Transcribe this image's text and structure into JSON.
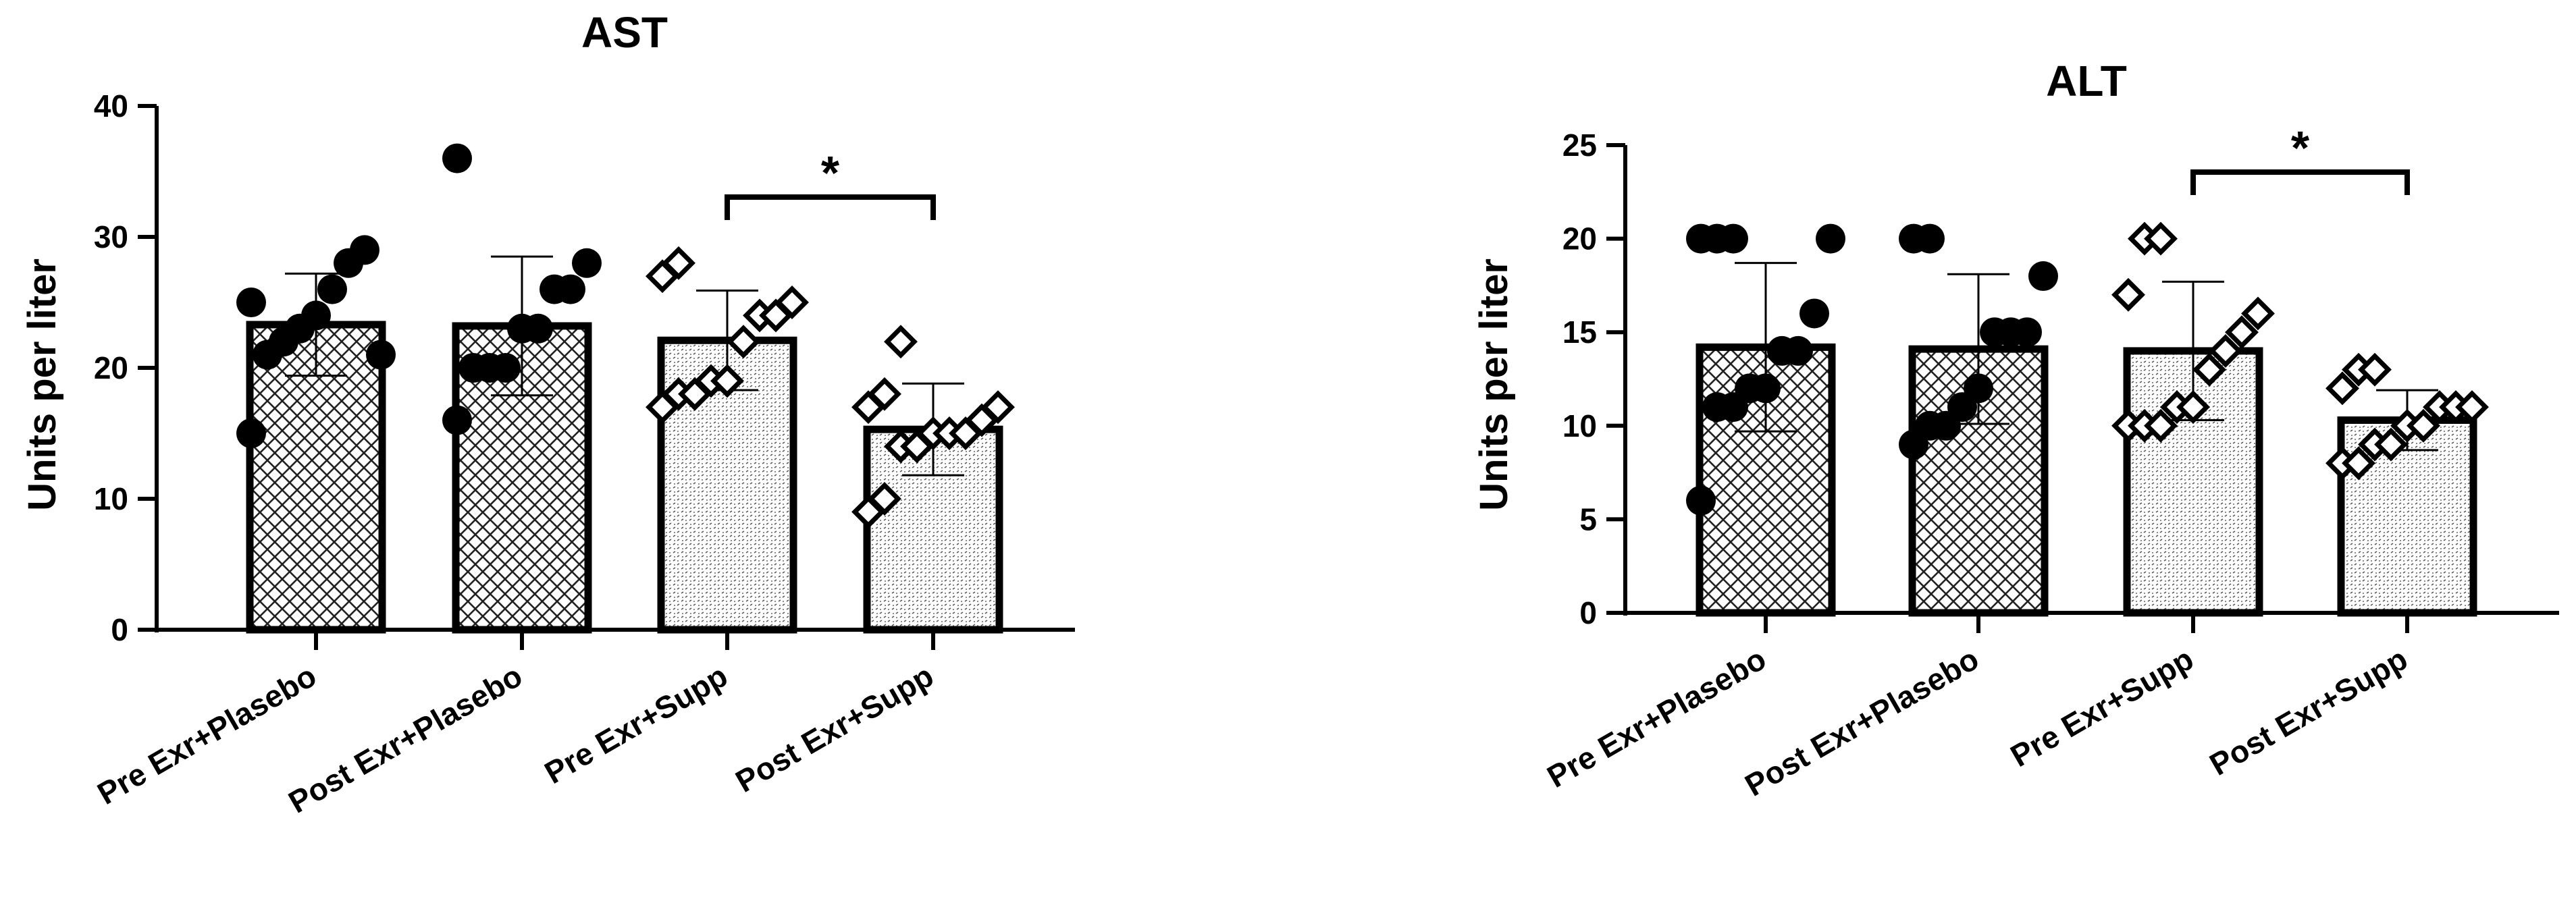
{
  "chart_data": [
    {
      "type": "bar",
      "title": "AST",
      "ylabel": "Units per liter",
      "xlabel": "",
      "ylim": [
        0,
        40
      ],
      "yticks": [
        0,
        10,
        20,
        30,
        40
      ],
      "grid": false,
      "categories": [
        "Pre Exr+Plasebo",
        "Post Exr+Plasebo",
        "Pre Exr+Supp",
        "Post Exr+Supp"
      ],
      "values": [
        23.3,
        23.2,
        22.1,
        15.3
      ],
      "error": [
        3.9,
        5.3,
        3.8,
        3.5
      ],
      "marker": [
        "circle",
        "circle",
        "diamond",
        "diamond"
      ],
      "pattern": [
        "crosshatch",
        "crosshatch",
        "dots",
        "dots"
      ],
      "points": [
        [
          15,
          21,
          22,
          23,
          24,
          26,
          28,
          29,
          21,
          25
        ],
        [
          16,
          20,
          20,
          20,
          23,
          23,
          26,
          26,
          28,
          36
        ],
        [
          17,
          18,
          18,
          19,
          19,
          22,
          24,
          24,
          25,
          27,
          28
        ],
        [
          9,
          10,
          14,
          14,
          15,
          15,
          15,
          16,
          17,
          17,
          18,
          22
        ]
      ],
      "significance": {
        "from": 2,
        "to": 3,
        "label": "*"
      }
    },
    {
      "type": "bar",
      "title": "ALT",
      "ylabel": "Units per liter",
      "xlabel": "",
      "ylim": [
        0,
        25
      ],
      "yticks": [
        0,
        5,
        10,
        15,
        20,
        25
      ],
      "grid": false,
      "categories": [
        "Pre Exr+Plasebo",
        "Post Exr+Plasebo",
        "Pre Exr+Supp",
        "Post Exr+Supp"
      ],
      "values": [
        14.2,
        14.1,
        14.0,
        10.3
      ],
      "error": [
        4.5,
        4.0,
        3.7,
        1.6
      ],
      "marker": [
        "circle",
        "circle",
        "diamond",
        "diamond"
      ],
      "pattern": [
        "crosshatch",
        "crosshatch",
        "dots",
        "dots"
      ],
      "points": [
        [
          6,
          11,
          11,
          12,
          12,
          14,
          14,
          16,
          20,
          20,
          20,
          20
        ],
        [
          9,
          10,
          10,
          11,
          12,
          15,
          15,
          15,
          18,
          20,
          20
        ],
        [
          10,
          10,
          10,
          11,
          11,
          13,
          14,
          15,
          16,
          17,
          20,
          20
        ],
        [
          8,
          8,
          9,
          9,
          10,
          10,
          11,
          11,
          11,
          12,
          13,
          13
        ]
      ],
      "significance": {
        "from": 2,
        "to": 3,
        "label": "*"
      }
    }
  ]
}
